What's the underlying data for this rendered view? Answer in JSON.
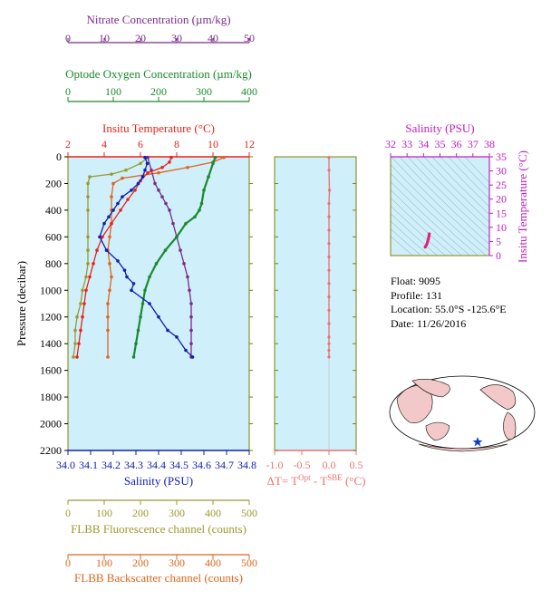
{
  "colors": {
    "nitrate": "#7b2a8c",
    "oxygen": "#1a8a2e",
    "temperature": "#e8241c",
    "salinity": "#1020b0",
    "fluorescence": "#9c9a2e",
    "backscatter": "#e0641c",
    "deltaT": "#f07070",
    "salinity_ts": "#c020c0",
    "frame": "#808000",
    "plot_bg": "#cfeffa"
  },
  "axes": {
    "nitrate": {
      "label": "Nitrate Concentration (µm/kg)",
      "ticks": [
        "0",
        "10",
        "20",
        "30",
        "40",
        "50"
      ]
    },
    "oxygen": {
      "label": "Optode Oxygen Concentration (µm/kg)",
      "ticks": [
        "0",
        "100",
        "200",
        "300",
        "400"
      ]
    },
    "temperature": {
      "label": "Insitu Temperature (°C)",
      "ticks": [
        "2",
        "4",
        "6",
        "8",
        "10",
        "12"
      ]
    },
    "salinity": {
      "label": "Salinity (PSU)",
      "ticks": [
        "34.0",
        "34.1",
        "34.2",
        "34.3",
        "34.4",
        "34.5",
        "34.6",
        "34.7",
        "34.8"
      ]
    },
    "pressure": {
      "label": "Pressure (decibar)",
      "ticks": [
        "0",
        "200",
        "400",
        "600",
        "800",
        "1000",
        "1200",
        "1400",
        "1600",
        "1800",
        "2000",
        "2200"
      ]
    },
    "fluorescence": {
      "label": "FLBB Fluorescence channel (counts)",
      "ticks": [
        "0",
        "100",
        "200",
        "300",
        "400",
        "500"
      ]
    },
    "backscatter": {
      "label": "FLBB Backscatter channel (counts)",
      "ticks": [
        "0",
        "100",
        "200",
        "300",
        "400",
        "500"
      ]
    },
    "deltaT": {
      "label": "ΔT= T",
      "sup1": "Opt",
      "mid": " - T",
      "sup2": "SBE",
      "unit": " (°C)",
      "ticks": [
        "-1.0",
        "-0.5",
        "0.0",
        "0.5"
      ]
    },
    "ts_salinity": {
      "label": "Salinity (PSU)",
      "ticks": [
        "32",
        "33",
        "34",
        "35",
        "36",
        "37",
        "38"
      ]
    },
    "ts_temperature": {
      "label": "Insitu Temperature (°C)",
      "ticks": [
        "0",
        "5",
        "10",
        "15",
        "20",
        "25",
        "30",
        "35"
      ]
    }
  },
  "info": {
    "float": "Float:  9095",
    "profile": "Profile:  131",
    "location": "Location:  55.0°S  -125.6°E",
    "date": "Date:  11/26/2016"
  },
  "chart_data": [
    {
      "type": "line",
      "title": "",
      "ylabel": "Pressure (decibar)",
      "ylim": [
        2200,
        0
      ],
      "series": [
        {
          "name": "Insitu Temperature (°C)",
          "xlim": [
            2,
            12
          ],
          "x": [
            7.7,
            7.6,
            7.2,
            6.4,
            6.0,
            5.7,
            5.3,
            4.9,
            4.4,
            3.9,
            3.6,
            3.4,
            3.2,
            3.0,
            2.9,
            2.8,
            2.7,
            2.6,
            2.5
          ],
          "y": [
            5,
            40,
            80,
            120,
            180,
            250,
            320,
            400,
            500,
            600,
            700,
            800,
            900,
            1000,
            1100,
            1200,
            1300,
            1400,
            1500
          ]
        },
        {
          "name": "Salinity (PSU)",
          "xlim": [
            34.0,
            34.8
          ],
          "x": [
            34.34,
            34.35,
            34.34,
            34.33,
            34.31,
            34.28,
            34.24,
            34.22,
            34.2,
            34.18,
            34.16,
            34.14,
            34.17,
            34.22,
            34.25,
            34.26,
            34.29,
            34.28,
            34.36,
            34.4,
            34.44,
            34.48,
            34.52,
            34.55
          ],
          "y": [
            5,
            50,
            100,
            150,
            200,
            250,
            300,
            350,
            400,
            450,
            500,
            600,
            700,
            780,
            850,
            900,
            950,
            1000,
            1100,
            1200,
            1300,
            1350,
            1450,
            1500
          ]
        },
        {
          "name": "Nitrate Concentration (µm/kg)",
          "xlim": [
            0,
            50
          ],
          "x": [
            22,
            23,
            24,
            25,
            26,
            27,
            28,
            29,
            30,
            31,
            32,
            33,
            33.5,
            34,
            34,
            34,
            34,
            34
          ],
          "y": [
            5,
            100,
            200,
            250,
            300,
            350,
            400,
            500,
            600,
            700,
            800,
            900,
            1000,
            1100,
            1200,
            1300,
            1400,
            1500
          ]
        },
        {
          "name": "Optode Oxygen Concentration (µm/kg)",
          "xlim": [
            0,
            400
          ],
          "x": [
            325,
            320,
            310,
            300,
            295,
            290,
            280,
            260,
            240,
            215,
            195,
            180,
            170,
            165,
            160,
            155,
            150,
            145
          ],
          "y": [
            5,
            50,
            150,
            250,
            350,
            400,
            450,
            500,
            600,
            700,
            800,
            900,
            1000,
            1100,
            1200,
            1300,
            1400,
            1500
          ]
        },
        {
          "name": "FLBB Fluorescence channel (counts)",
          "xlim": [
            0,
            500
          ],
          "x": [
            220,
            200,
            160,
            120,
            60,
            55,
            55,
            55,
            55,
            55,
            55,
            50,
            40,
            35,
            25,
            20,
            20,
            15
          ],
          "y": [
            5,
            50,
            100,
            130,
            150,
            200,
            300,
            400,
            600,
            700,
            800,
            900,
            1000,
            1100,
            1200,
            1300,
            1400,
            1500
          ]
        },
        {
          "name": "FLBB Backscatter channel (counts)",
          "xlim": [
            0,
            500
          ],
          "x": [
            430,
            400,
            330,
            250,
            150,
            125,
            120,
            120,
            120,
            115,
            110,
            115,
            120,
            115,
            110,
            110,
            110,
            110
          ],
          "y": [
            5,
            40,
            80,
            120,
            160,
            200,
            300,
            400,
            500,
            600,
            700,
            800,
            900,
            1000,
            1100,
            1200,
            1300,
            1500
          ]
        }
      ]
    },
    {
      "type": "line",
      "xlabel": "ΔT= TOpt - TSBE (°C)",
      "xlim": [
        -1.0,
        0.5
      ],
      "ylim": [
        2200,
        0
      ],
      "x": [
        0.0,
        0.0,
        0.01,
        0.0,
        0.0,
        0.0,
        0.0,
        0.0,
        0.0,
        0.0,
        0.0,
        0.0,
        0.0,
        0.0,
        0.0,
        0.0,
        0.0
      ],
      "y": [
        5,
        100,
        250,
        350,
        450,
        550,
        650,
        750,
        850,
        950,
        1050,
        1150,
        1250,
        1350,
        1400,
        1450,
        1500
      ]
    },
    {
      "type": "scatter",
      "xlabel": "Salinity (PSU)",
      "ylabel": "Insitu Temperature (°C)",
      "xlim": [
        32,
        38
      ],
      "ylim": [
        0,
        35
      ],
      "x": [
        34.1,
        34.2,
        34.25,
        34.3,
        34.33,
        34.35
      ],
      "y": [
        3.0,
        4.0,
        5.0,
        6.0,
        7.0,
        7.7
      ]
    }
  ],
  "map": {
    "name": "world-map",
    "marker_color": "#1040c0",
    "marker_label": "float-location"
  }
}
